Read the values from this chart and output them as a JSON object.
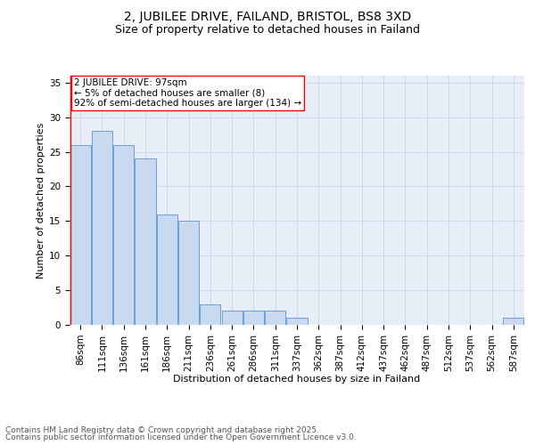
{
  "title": "2, JUBILEE DRIVE, FAILAND, BRISTOL, BS8 3XD",
  "subtitle": "Size of property relative to detached houses in Failand",
  "xlabel": "Distribution of detached houses by size in Failand",
  "ylabel": "Number of detached properties",
  "bar_color": "#c9d9f0",
  "bar_edge_color": "#6a9fd8",
  "background_color": "#e8eef7",
  "categories": [
    "86sqm",
    "111sqm",
    "136sqm",
    "161sqm",
    "186sqm",
    "211sqm",
    "236sqm",
    "261sqm",
    "286sqm",
    "311sqm",
    "337sqm",
    "362sqm",
    "387sqm",
    "412sqm",
    "437sqm",
    "462sqm",
    "487sqm",
    "512sqm",
    "537sqm",
    "562sqm",
    "587sqm"
  ],
  "values": [
    26,
    28,
    26,
    24,
    16,
    15,
    3,
    2,
    2,
    2,
    1,
    0,
    0,
    0,
    0,
    0,
    0,
    0,
    0,
    0,
    1
  ],
  "ylim": [
    0,
    36
  ],
  "yticks": [
    0,
    5,
    10,
    15,
    20,
    25,
    30,
    35
  ],
  "annotation_title": "2 JUBILEE DRIVE: 97sqm",
  "annotation_line1": "← 5% of detached houses are smaller (8)",
  "annotation_line2": "92% of semi-detached houses are larger (134) →",
  "footer1": "Contains HM Land Registry data © Crown copyright and database right 2025.",
  "footer2": "Contains public sector information licensed under the Open Government Licence v3.0.",
  "grid_color": "#c8d4e8",
  "title_fontsize": 10,
  "subtitle_fontsize": 9,
  "label_fontsize": 8,
  "tick_fontsize": 7.5,
  "annot_fontsize": 7.5,
  "footer_fontsize": 6.5
}
